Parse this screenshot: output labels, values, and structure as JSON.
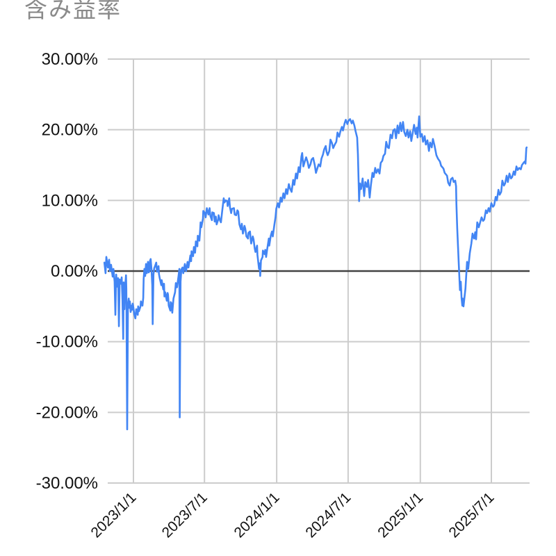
{
  "header": {
    "title": "含み益率"
  },
  "colors": {
    "title_text": "#8a8a8a",
    "axis_text": "#111111",
    "grid_line": "#cccccc",
    "zero_line": "#424242",
    "series_line": "#4285f4",
    "background": "#ffffff"
  },
  "chart_data": {
    "type": "line",
    "title": "含み益率",
    "xlabel": "",
    "ylabel": "",
    "legend": "none",
    "grid": true,
    "x_unit": "days since 2023/1/1",
    "x_domain": [
      -74,
      1002
    ],
    "ylim": [
      -30,
      30
    ],
    "x_ticks": [
      {
        "label": "2023/1/1",
        "days": 0
      },
      {
        "label": "2023/7/1",
        "days": 181
      },
      {
        "label": "2024/1/1",
        "days": 365
      },
      {
        "label": "2024/7/1",
        "days": 547
      },
      {
        "label": "2025/1/1",
        "days": 731
      },
      {
        "label": "2025/7/1",
        "days": 912
      }
    ],
    "y_ticks": [
      {
        "label": "30.00%",
        "value": 30
      },
      {
        "label": "20.00%",
        "value": 20
      },
      {
        "label": "10.00%",
        "value": 10
      },
      {
        "label": "0.00%",
        "value": 0
      },
      {
        "label": "-10.00%",
        "value": -10
      },
      {
        "label": "-20.00%",
        "value": -20
      },
      {
        "label": "-30.00%",
        "value": -30
      }
    ],
    "zero_baseline": true,
    "points": [
      [
        -74,
        1.2
      ],
      [
        -71,
        -0.3
      ],
      [
        -69,
        2.0
      ],
      [
        -65,
        0.5
      ],
      [
        -62,
        1.6
      ],
      [
        -60,
        0.0
      ],
      [
        -57,
        0.9
      ],
      [
        -53,
        -0.8
      ],
      [
        -51,
        0.3
      ],
      [
        -48,
        -1.5
      ],
      [
        -46,
        -6.2
      ],
      [
        -44,
        -0.5
      ],
      [
        -42,
        -2.2
      ],
      [
        -41,
        -1.2
      ],
      [
        -39,
        -1.0
      ],
      [
        -37,
        -7.8
      ],
      [
        -35,
        -1.2
      ],
      [
        -32,
        -1.8
      ],
      [
        -30,
        -0.9
      ],
      [
        -28,
        -4.1
      ],
      [
        -26,
        -9.6
      ],
      [
        -25,
        -1.6
      ],
      [
        -23,
        -5.4
      ],
      [
        -21,
        -2.1
      ],
      [
        -19,
        -0.6
      ],
      [
        -18,
        -2.6
      ],
      [
        -16,
        -22.4
      ],
      [
        -14,
        -4.7
      ],
      [
        -12,
        -3.9
      ],
      [
        -11,
        -5.2
      ],
      [
        -9,
        -4.3
      ],
      [
        -7,
        -5.8
      ],
      [
        -5,
        -4.9
      ],
      [
        -4,
        -5.5
      ],
      [
        -2,
        -4.6
      ],
      [
        0,
        -5.2
      ],
      [
        2,
        -6.1
      ],
      [
        5,
        -6.7
      ],
      [
        7,
        -5.4
      ],
      [
        11,
        -6.2
      ],
      [
        12,
        -5.0
      ],
      [
        14,
        -5.7
      ],
      [
        18,
        -5.0
      ],
      [
        19,
        -4.3
      ],
      [
        23,
        -4.9
      ],
      [
        25,
        -3.8
      ],
      [
        26,
        -1.1
      ],
      [
        28,
        0.3
      ],
      [
        30,
        -0.7
      ],
      [
        32,
        1.0
      ],
      [
        34,
        -0.3
      ],
      [
        37,
        1.3
      ],
      [
        39,
        -0.2
      ],
      [
        41,
        0.1
      ],
      [
        42,
        1.4
      ],
      [
        44,
        1.7
      ],
      [
        46,
        0.2
      ],
      [
        48,
        -2.0
      ],
      [
        49,
        -7.5
      ],
      [
        51,
        -0.5
      ],
      [
        53,
        0.4
      ],
      [
        55,
        0.7
      ],
      [
        58,
        1.2
      ],
      [
        60,
        -0.1
      ],
      [
        64,
        0.7
      ],
      [
        65,
        -0.4
      ],
      [
        67,
        -1.0
      ],
      [
        71,
        -2.0
      ],
      [
        72,
        -1.3
      ],
      [
        76,
        -2.6
      ],
      [
        78,
        -1.8
      ],
      [
        79,
        -3.6
      ],
      [
        81,
        -3.0
      ],
      [
        85,
        -4.2
      ],
      [
        87,
        -3.1
      ],
      [
        88,
        -3.3
      ],
      [
        90,
        -4.9
      ],
      [
        94,
        -5.6
      ],
      [
        95,
        -4.4
      ],
      [
        97,
        -4.6
      ],
      [
        99,
        -5.9
      ],
      [
        102,
        -3.9
      ],
      [
        106,
        -3.0
      ],
      [
        108,
        -1.7
      ],
      [
        111,
        -2.3
      ],
      [
        115,
        -0.7
      ],
      [
        117,
        0.3
      ],
      [
        118,
        -20.7
      ],
      [
        120,
        -1.5
      ],
      [
        122,
        0.2
      ],
      [
        125,
        0.5
      ],
      [
        127,
        -0.3
      ],
      [
        131,
        1.0
      ],
      [
        134,
        0.0
      ],
      [
        138,
        1.3
      ],
      [
        140,
        0.5
      ],
      [
        143,
        1.5
      ],
      [
        145,
        2.2
      ],
      [
        147,
        1.4
      ],
      [
        148,
        2.8
      ],
      [
        152,
        2.1
      ],
      [
        154,
        3.4
      ],
      [
        157,
        2.6
      ],
      [
        159,
        4.2
      ],
      [
        163,
        3.5
      ],
      [
        164,
        5.0
      ],
      [
        168,
        4.3
      ],
      [
        170,
        5.8
      ],
      [
        171,
        6.9
      ],
      [
        173,
        6.2
      ],
      [
        177,
        7.4
      ],
      [
        178,
        8.5
      ],
      [
        182,
        8.2
      ],
      [
        184,
        7.6
      ],
      [
        187,
        8.9
      ],
      [
        191,
        8.0
      ],
      [
        194,
        8.9
      ],
      [
        196,
        7.8
      ],
      [
        200,
        7.2
      ],
      [
        201,
        8.3
      ],
      [
        205,
        8.2
      ],
      [
        207,
        7.0
      ],
      [
        210,
        7.7
      ],
      [
        212,
        6.6
      ],
      [
        216,
        7.3
      ],
      [
        217,
        7.9
      ],
      [
        221,
        7.1
      ],
      [
        223,
        6.9
      ],
      [
        226,
        8.4
      ],
      [
        230,
        10.3
      ],
      [
        232,
        9.7
      ],
      [
        235,
        10.0
      ],
      [
        239,
        9.9
      ],
      [
        240,
        9.2
      ],
      [
        244,
        10.3
      ],
      [
        246,
        9.0
      ],
      [
        249,
        8.2
      ],
      [
        251,
        8.8
      ],
      [
        256,
        8.9
      ],
      [
        258,
        8.0
      ],
      [
        262,
        7.9
      ],
      [
        265,
        8.6
      ],
      [
        267,
        8.4
      ],
      [
        270,
        6.6
      ],
      [
        274,
        5.9
      ],
      [
        276,
        6.7
      ],
      [
        279,
        5.3
      ],
      [
        283,
        6.4
      ],
      [
        285,
        6.0
      ],
      [
        288,
        4.9
      ],
      [
        292,
        4.6
      ],
      [
        293,
        5.4
      ],
      [
        297,
        5.6
      ],
      [
        299,
        4.4
      ],
      [
        300,
        3.9
      ],
      [
        304,
        4.9
      ],
      [
        306,
        4.5
      ],
      [
        309,
        3.2
      ],
      [
        311,
        2.7
      ],
      [
        315,
        3.6
      ],
      [
        316,
        2.3
      ],
      [
        320,
        0.3
      ],
      [
        322,
        1.1
      ],
      [
        323,
        -0.7
      ],
      [
        325,
        1.5
      ],
      [
        329,
        2.0
      ],
      [
        330,
        2.9
      ],
      [
        334,
        2.4
      ],
      [
        336,
        3.0
      ],
      [
        338,
        2.0
      ],
      [
        341,
        3.2
      ],
      [
        345,
        4.6
      ],
      [
        346,
        3.6
      ],
      [
        350,
        5.0
      ],
      [
        353,
        5.6
      ],
      [
        355,
        4.9
      ],
      [
        359,
        6.5
      ],
      [
        362,
        7.6
      ],
      [
        364,
        8.8
      ],
      [
        368,
        9.6
      ],
      [
        371,
        9.0
      ],
      [
        375,
        10.4
      ],
      [
        378,
        9.8
      ],
      [
        382,
        11.0
      ],
      [
        385,
        10.3
      ],
      [
        389,
        11.6
      ],
      [
        392,
        10.9
      ],
      [
        396,
        12.3
      ],
      [
        399,
        11.7
      ],
      [
        403,
        11.2
      ],
      [
        407,
        12.9
      ],
      [
        410,
        12.2
      ],
      [
        414,
        13.8
      ],
      [
        417,
        13.1
      ],
      [
        421,
        14.7
      ],
      [
        424,
        14.0
      ],
      [
        428,
        16.2
      ],
      [
        430,
        16.7
      ],
      [
        433,
        14.8
      ],
      [
        437,
        15.6
      ],
      [
        440,
        16.1
      ],
      [
        444,
        15.4
      ],
      [
        447,
        14.6
      ],
      [
        451,
        15.1
      ],
      [
        454,
        15.8
      ],
      [
        458,
        16.0
      ],
      [
        462,
        15.0
      ],
      [
        465,
        13.9
      ],
      [
        469,
        14.6
      ],
      [
        472,
        15.1
      ],
      [
        476,
        14.8
      ],
      [
        479,
        15.9
      ],
      [
        483,
        16.5
      ],
      [
        486,
        17.2
      ],
      [
        490,
        17.7
      ],
      [
        492,
        16.9
      ],
      [
        495,
        16.4
      ],
      [
        499,
        17.0
      ],
      [
        502,
        18.6
      ],
      [
        506,
        18.1
      ],
      [
        509,
        17.4
      ],
      [
        513,
        17.9
      ],
      [
        517,
        18.3
      ],
      [
        520,
        19.6
      ],
      [
        524,
        19.0
      ],
      [
        527,
        19.7
      ],
      [
        531,
        20.4
      ],
      [
        534,
        19.9
      ],
      [
        538,
        20.9
      ],
      [
        541,
        21.4
      ],
      [
        545,
        20.8
      ],
      [
        548,
        21.3
      ],
      [
        552,
        21.5
      ],
      [
        556,
        20.9
      ],
      [
        559,
        21.3
      ],
      [
        563,
        20.6
      ],
      [
        566,
        19.8
      ],
      [
        570,
        18.9
      ],
      [
        572,
        16.5
      ],
      [
        575,
        9.9
      ],
      [
        577,
        12.4
      ],
      [
        580,
        11.6
      ],
      [
        584,
        13.1
      ],
      [
        588,
        10.6
      ],
      [
        591,
        12.6
      ],
      [
        595,
        11.9
      ],
      [
        598,
        12.9
      ],
      [
        602,
        10.4
      ],
      [
        605,
        12.1
      ],
      [
        609,
        13.9
      ],
      [
        612,
        13.3
      ],
      [
        616,
        14.6
      ],
      [
        619,
        13.9
      ],
      [
        623,
        14.4
      ],
      [
        627,
        13.8
      ],
      [
        630,
        15.3
      ],
      [
        634,
        15.6
      ],
      [
        637,
        16.3
      ],
      [
        641,
        16.6
      ],
      [
        644,
        18.3
      ],
      [
        648,
        17.5
      ],
      [
        651,
        17.4
      ],
      [
        655,
        19.3
      ],
      [
        659,
        18.8
      ],
      [
        662,
        19.9
      ],
      [
        666,
        20.1
      ],
      [
        669,
        18.8
      ],
      [
        673,
        20.6
      ],
      [
        676,
        19.5
      ],
      [
        680,
        21.0
      ],
      [
        683,
        19.8
      ],
      [
        687,
        21.1
      ],
      [
        690,
        19.7
      ],
      [
        694,
        19.1
      ],
      [
        698,
        20.0
      ],
      [
        701,
        18.9
      ],
      [
        705,
        19.8
      ],
      [
        708,
        18.4
      ],
      [
        712,
        19.7
      ],
      [
        715,
        20.7
      ],
      [
        719,
        19.4
      ],
      [
        722,
        20.3
      ],
      [
        724,
        18.9
      ],
      [
        728,
        21.9
      ],
      [
        731,
        19.0
      ],
      [
        735,
        19.4
      ],
      [
        738,
        18.3
      ],
      [
        742,
        19.1
      ],
      [
        745,
        17.9
      ],
      [
        749,
        18.5
      ],
      [
        753,
        17.0
      ],
      [
        756,
        18.2
      ],
      [
        760,
        17.5
      ],
      [
        763,
        18.7
      ],
      [
        767,
        17.8
      ],
      [
        772,
        16.4
      ],
      [
        776,
        15.9
      ],
      [
        781,
        15.5
      ],
      [
        784,
        14.9
      ],
      [
        790,
        14.5
      ],
      [
        793,
        13.9
      ],
      [
        799,
        13.5
      ],
      [
        802,
        12.5
      ],
      [
        806,
        12.1
      ],
      [
        809,
        13.0
      ],
      [
        813,
        13.2
      ],
      [
        816,
        12.6
      ],
      [
        820,
        12.8
      ],
      [
        822,
        12.0
      ],
      [
        823,
        9.5
      ],
      [
        825,
        6.0
      ],
      [
        827,
        3.5
      ],
      [
        829,
        1.0
      ],
      [
        832,
        -2.7
      ],
      [
        834,
        -1.5
      ],
      [
        836,
        -3.8
      ],
      [
        838,
        -4.9
      ],
      [
        839,
        -3.9
      ],
      [
        841,
        -5.0
      ],
      [
        843,
        -4.0
      ],
      [
        846,
        -2.5
      ],
      [
        850,
        1.3
      ],
      [
        853,
        0.3
      ],
      [
        857,
        2.5
      ],
      [
        861,
        3.9
      ],
      [
        864,
        5.3
      ],
      [
        868,
        4.6
      ],
      [
        871,
        5.5
      ],
      [
        873,
        4.5
      ],
      [
        876,
        6.9
      ],
      [
        880,
        6.2
      ],
      [
        884,
        7.0
      ],
      [
        887,
        7.6
      ],
      [
        891,
        7.1
      ],
      [
        894,
        7.3
      ],
      [
        898,
        8.6
      ],
      [
        901,
        8.2
      ],
      [
        905,
        8.9
      ],
      [
        908,
        8.4
      ],
      [
        912,
        9.6
      ],
      [
        916,
        9.1
      ],
      [
        919,
        9.3
      ],
      [
        923,
        10.5
      ],
      [
        926,
        10.0
      ],
      [
        930,
        11.5
      ],
      [
        933,
        10.8
      ],
      [
        937,
        11.2
      ],
      [
        940,
        12.8
      ],
      [
        944,
        12.1
      ],
      [
        947,
        12.4
      ],
      [
        951,
        13.5
      ],
      [
        954,
        12.6
      ],
      [
        958,
        13.8
      ],
      [
        962,
        13.1
      ],
      [
        965,
        13.3
      ],
      [
        969,
        14.1
      ],
      [
        972,
        13.6
      ],
      [
        976,
        14.8
      ],
      [
        979,
        14.3
      ],
      [
        983,
        14.6
      ],
      [
        987,
        14.4
      ],
      [
        990,
        15.0
      ],
      [
        994,
        15.3
      ],
      [
        997,
        15.5
      ],
      [
        999,
        15.2
      ],
      [
        1001,
        17.4
      ],
      [
        1002,
        17.5
      ]
    ]
  }
}
